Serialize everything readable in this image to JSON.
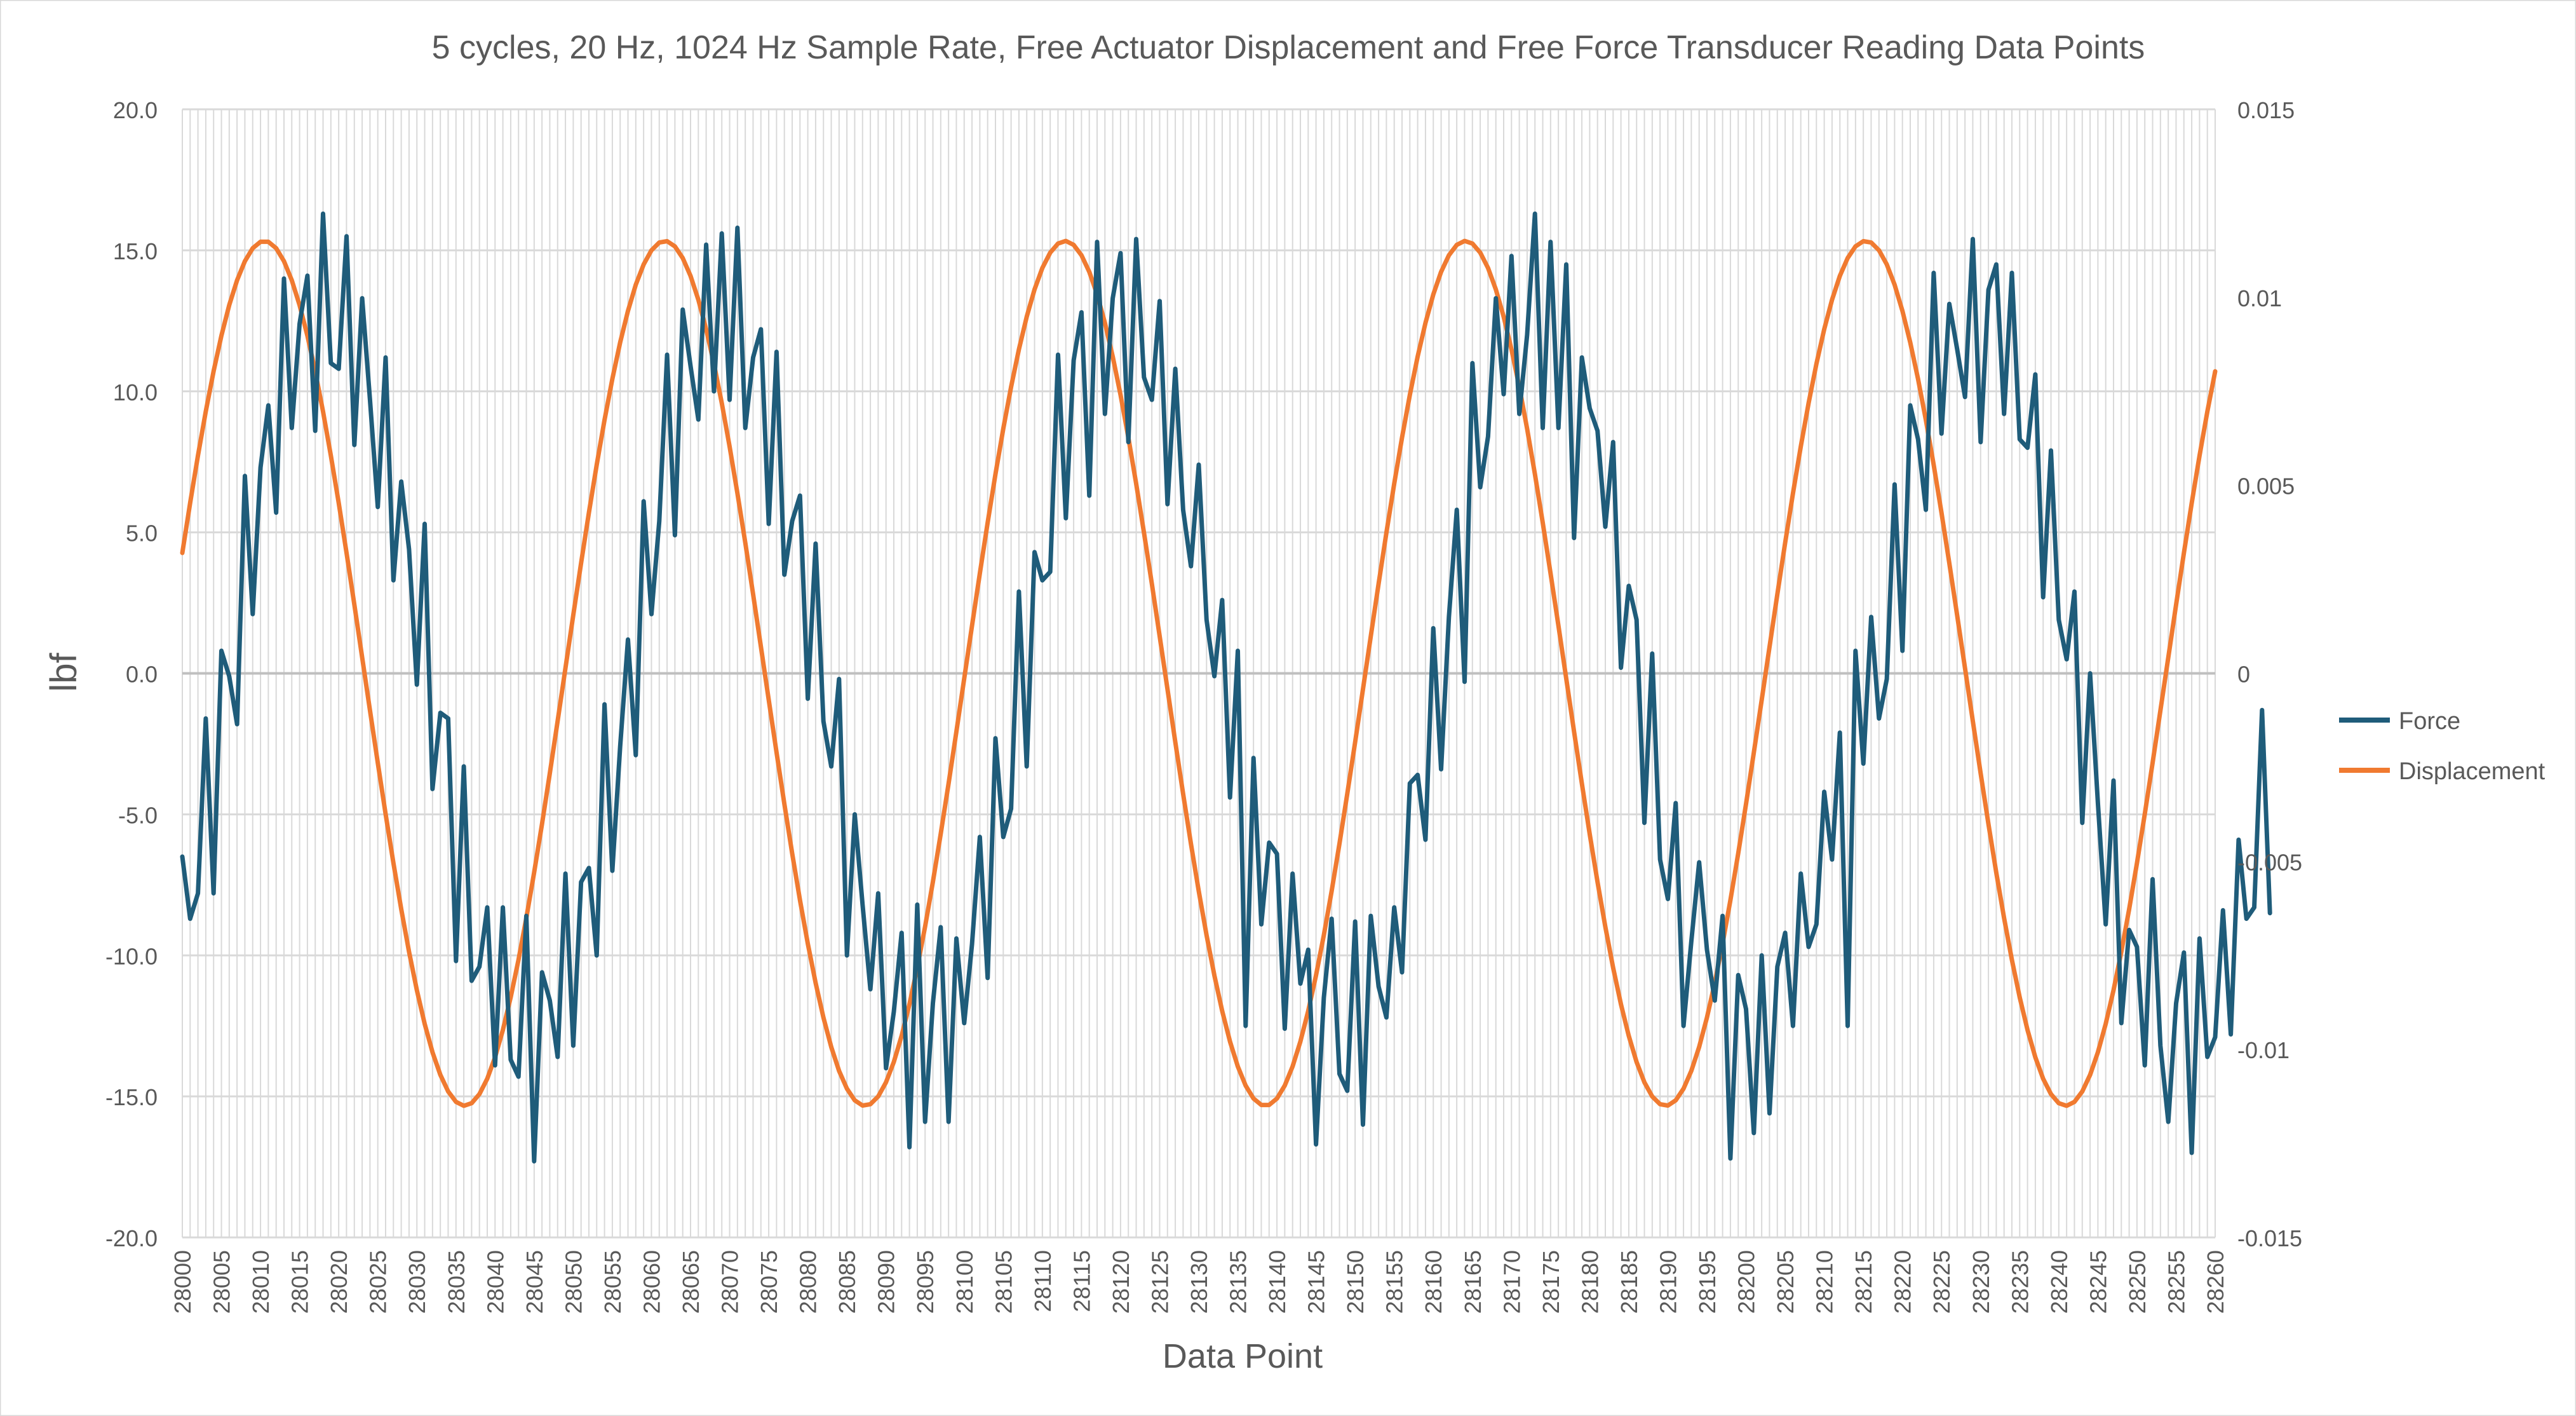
{
  "chart_data": {
    "type": "line",
    "title": "5 cycles, 20 Hz, 1024 Hz Sample Rate, Free Actuator Displacement and Free Force Transducer Reading Data Points",
    "xlabel": "Data Point",
    "ylabel": "lbf",
    "y2label": "",
    "x": {
      "start": 28000,
      "end": 28260,
      "step": 1
    },
    "xtick_step": 5,
    "ylim": [
      -20,
      20
    ],
    "ytick_step": 5,
    "yticks": [
      "-20.0",
      "-15.0",
      "-10.0",
      "-5.0",
      "0.0",
      "5.0",
      "10.0",
      "15.0",
      "20.0"
    ],
    "y2lim": [
      -0.015,
      0.015
    ],
    "y2ticks": [
      "-0.015",
      "-0.01",
      "-0.005",
      "0",
      "0.005",
      "0.01",
      "0.015"
    ],
    "grid": true,
    "legend_position": "right",
    "series": [
      {
        "name": "Force",
        "axis": "left",
        "color": "#1f5c7a",
        "values": [
          -6.5,
          -8.7,
          -7.8,
          -1.6,
          -7.8,
          0.8,
          -0.1,
          -1.8,
          7.0,
          2.1,
          7.3,
          9.5,
          5.7,
          14.0,
          8.7,
          12.4,
          14.1,
          8.6,
          16.3,
          11.0,
          10.8,
          15.5,
          8.1,
          13.3,
          9.7,
          5.9,
          11.2,
          3.3,
          6.8,
          4.4,
          -0.4,
          5.3,
          -4.1,
          -1.4,
          -1.6,
          -10.2,
          -3.3,
          -10.9,
          -10.4,
          -8.3,
          -13.9,
          -8.3,
          -13.7,
          -14.3,
          -8.6,
          -17.3,
          -10.6,
          -11.6,
          -13.6,
          -7.1,
          -13.2,
          -7.4,
          -6.9,
          -10.0,
          -1.1,
          -7.0,
          -2.6,
          1.2,
          -2.9,
          6.1,
          2.1,
          5.4,
          11.3,
          4.9,
          12.9,
          10.9,
          9.0,
          15.2,
          10.0,
          15.6,
          9.7,
          15.8,
          8.7,
          11.2,
          12.2,
          5.3,
          11.4,
          3.5,
          5.4,
          6.3,
          -0.9,
          4.6,
          -1.7,
          -3.3,
          -0.2,
          -10.0,
          -5.0,
          -8.2,
          -11.2,
          -7.8,
          -14.0,
          -12.0,
          -9.2,
          -16.8,
          -8.2,
          -15.9,
          -11.7,
          -9.0,
          -15.9,
          -9.4,
          -12.4,
          -9.6,
          -5.8,
          -10.8,
          -2.3,
          -5.8,
          -4.8,
          2.9,
          -3.3,
          4.3,
          3.3,
          3.6,
          11.3,
          5.5,
          11.1,
          12.8,
          6.3,
          15.3,
          9.2,
          13.3,
          14.9,
          8.2,
          15.4,
          10.5,
          9.7,
          13.2,
          6.0,
          10.8,
          5.8,
          3.8,
          7.4,
          1.9,
          -0.1,
          2.6,
          -4.4,
          0.8,
          -12.5,
          -3.0,
          -8.9,
          -6.0,
          -6.4,
          -12.6,
          -7.1,
          -11.0,
          -9.8,
          -16.7,
          -11.5,
          -8.7,
          -14.2,
          -14.8,
          -8.8,
          -16.0,
          -8.6,
          -11.1,
          -12.2,
          -8.3,
          -10.6,
          -3.9,
          -3.6,
          -5.9,
          1.6,
          -3.4,
          2.0,
          5.8,
          -0.3,
          11.0,
          6.6,
          8.4,
          13.3,
          9.9,
          14.8,
          9.2,
          12.0,
          16.3,
          8.7,
          15.3,
          8.7,
          14.5,
          4.8,
          11.2,
          9.4,
          8.6,
          5.2,
          8.2,
          0.2,
          3.1,
          1.9,
          -5.3,
          0.7,
          -6.6,
          -8.0,
          -4.6,
          -12.5,
          -9.5,
          -6.7,
          -9.8,
          -11.6,
          -8.6,
          -17.2,
          -10.7,
          -11.9,
          -16.3,
          -10.0,
          -15.6,
          -10.4,
          -9.2,
          -12.5,
          -7.1,
          -9.7,
          -8.9,
          -4.2,
          -6.6,
          -2.1,
          -12.5,
          0.8,
          -3.2,
          2.0,
          -1.6,
          -0.2,
          6.7,
          0.8,
          9.5,
          8.3,
          5.8,
          14.2,
          8.5,
          13.1,
          11.5,
          9.8,
          15.4,
          8.2,
          13.6,
          14.5,
          9.2,
          14.2,
          8.3,
          8.0,
          10.6,
          2.7,
          7.9,
          1.9,
          0.5,
          2.9,
          -5.3,
          0.0,
          -4.6,
          -8.9,
          -3.8,
          -12.4,
          -9.1,
          -9.7,
          -13.9,
          -7.3,
          -13.2,
          -15.9,
          -11.7,
          -9.9,
          -17.0,
          -9.4,
          -13.6,
          -12.9,
          -8.4,
          -12.8,
          -5.9,
          -8.7,
          -8.3,
          -1.3,
          -8.5
        ]
      },
      {
        "name": "Displacement",
        "axis": "right",
        "color": "#f07a30",
        "amplitude": 0.0115,
        "period_points": 51.2,
        "peak_at": 28010.5
      }
    ]
  }
}
